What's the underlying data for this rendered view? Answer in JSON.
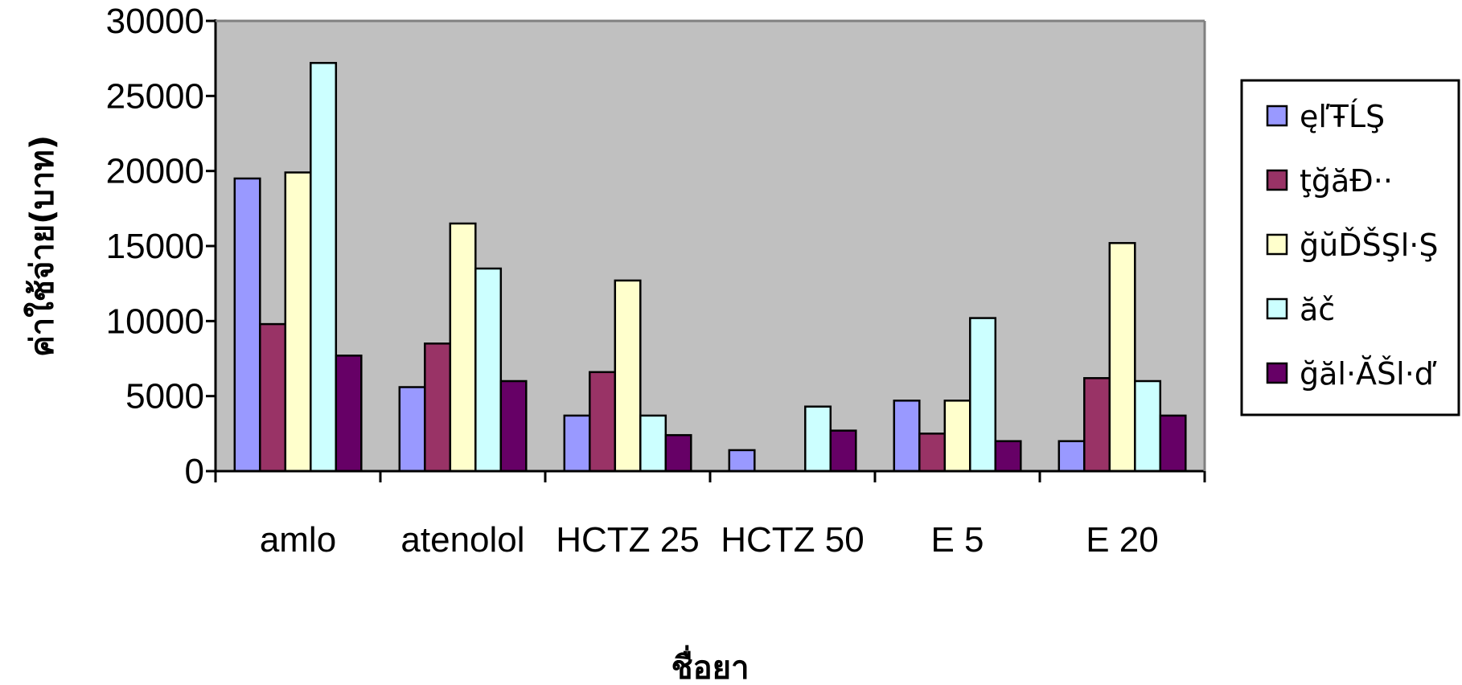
{
  "chart_data": {
    "type": "bar",
    "title": "",
    "xlabel": "ชื่อยา",
    "ylabel": "ค่าใช้จ่าย(บาท)",
    "ylim": [
      0,
      30000
    ],
    "yticks": [
      0,
      5000,
      10000,
      15000,
      20000,
      25000,
      30000
    ],
    "grid": false,
    "legend_position": "right",
    "plot_background": "#c0c0c0",
    "categories": [
      "amlo",
      "atenolol",
      "HCTZ 25",
      "HCTZ 50",
      "E 5",
      "E 20"
    ],
    "series": [
      {
        "name": "ęľŦĹŞ",
        "color": "#9999ff",
        "values": [
          19500,
          5600,
          3700,
          1400,
          4700,
          2000
        ]
      },
      {
        "name": "ţğăĐ··",
        "color": "#993366",
        "values": [
          9800,
          8500,
          6600,
          0,
          2500,
          6200
        ]
      },
      {
        "name": "ğŭĎŠŞl·Ş",
        "color": "#ffffcc",
        "values": [
          19900,
          16500,
          12700,
          0,
          4700,
          15200
        ]
      },
      {
        "name": "ăč",
        "color": "#ccffff",
        "values": [
          27200,
          13500,
          3700,
          4300,
          10200,
          6000
        ]
      },
      {
        "name": "ğăl·ĂŠl·ď",
        "color": "#660066",
        "values": [
          7700,
          6000,
          2400,
          2700,
          2000,
          3700
        ]
      }
    ]
  }
}
